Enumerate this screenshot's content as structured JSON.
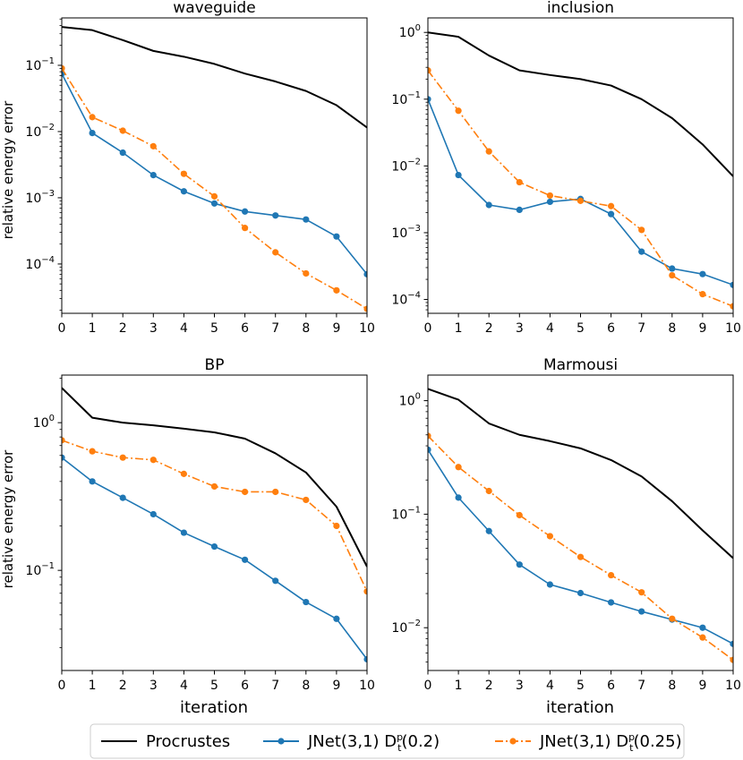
{
  "figure": {
    "x_axis_label": "iteration",
    "y_axis_label": "relative energy error"
  },
  "legend": {
    "placement": "bottom-center",
    "entries": [
      {
        "text": "Procrustes",
        "color": "#000000",
        "marker": false,
        "dash": "solid"
      },
      {
        "text": "JNet(3,1) D",
        "sup": "p",
        "sub": "t",
        "arg": "(0.2)",
        "color": "#1f77b4",
        "marker": true,
        "dash": "solid"
      },
      {
        "text": "JNet(3,1) D",
        "sup": "p",
        "sub": "t",
        "arg": "(0.25)",
        "color": "#ff7f0e",
        "marker": true,
        "dash": "dashdot"
      }
    ]
  },
  "chart_data": [
    {
      "type": "line",
      "title": "waveguide",
      "xlabel": "",
      "ylabel": "relative energy error",
      "yscale": "log",
      "xlim": [
        0,
        10
      ],
      "ylim": [
        1.8e-05,
        0.52
      ],
      "xticks": [
        "0",
        "1",
        "2",
        "3",
        "4",
        "5",
        "6",
        "7",
        "8",
        "9",
        "10"
      ],
      "yticks": [
        {
          "base": "10",
          "exp": "−1",
          "value": 0.1
        },
        {
          "base": "10",
          "exp": "−2",
          "value": 0.01
        },
        {
          "base": "10",
          "exp": "−3",
          "value": 0.001
        },
        {
          "base": "10",
          "exp": "−4",
          "value": 0.0001
        }
      ],
      "x": [
        0,
        1,
        2,
        3,
        4,
        5,
        6,
        7,
        8,
        9,
        10
      ],
      "series": [
        {
          "name": "Procrustes",
          "values": [
            0.38,
            0.34,
            0.24,
            0.165,
            0.135,
            0.105,
            0.075,
            0.057,
            0.041,
            0.025,
            0.0115
          ]
        },
        {
          "name": "JNet(3,1) D_t^p(0.2)",
          "values": [
            0.075,
            0.0095,
            0.0048,
            0.0022,
            0.00125,
            0.00082,
            0.00062,
            0.00054,
            0.00047,
            0.00026,
            7e-05
          ]
        },
        {
          "name": "JNet(3,1) D_t^p(0.25)",
          "values": [
            0.09,
            0.0165,
            0.0103,
            0.006,
            0.0023,
            0.00105,
            0.00035,
            0.00015,
            7.2e-05,
            4e-05,
            2.1e-05
          ]
        }
      ]
    },
    {
      "type": "line",
      "title": "inclusion",
      "xlabel": "",
      "ylabel": "",
      "yscale": "log",
      "xlim": [
        0,
        10
      ],
      "ylim": [
        6.2e-05,
        1.65
      ],
      "xticks": [
        "0",
        "1",
        "2",
        "3",
        "4",
        "5",
        "6",
        "7",
        "8",
        "9",
        "10"
      ],
      "yticks": [
        {
          "base": "10",
          "exp": "0",
          "value": 1
        },
        {
          "base": "10",
          "exp": "−1",
          "value": 0.1
        },
        {
          "base": "10",
          "exp": "−2",
          "value": 0.01
        },
        {
          "base": "10",
          "exp": "−3",
          "value": 0.001
        },
        {
          "base": "10",
          "exp": "−4",
          "value": 0.0001
        }
      ],
      "x": [
        0,
        1,
        2,
        3,
        4,
        5,
        6,
        7,
        8,
        9,
        10
      ],
      "series": [
        {
          "name": "Procrustes",
          "values": [
            1.0,
            0.86,
            0.45,
            0.27,
            0.23,
            0.2,
            0.16,
            0.1,
            0.052,
            0.021,
            0.007
          ]
        },
        {
          "name": "JNet(3,1) D_t^p(0.2)",
          "values": [
            0.1,
            0.0073,
            0.0026,
            0.0022,
            0.0029,
            0.0032,
            0.0019,
            0.00052,
            0.00029,
            0.00024,
            0.000165
          ]
        },
        {
          "name": "JNet(3,1) D_t^p(0.25)",
          "values": [
            0.27,
            0.067,
            0.0165,
            0.0057,
            0.0036,
            0.003,
            0.0025,
            0.0011,
            0.00023,
            0.00012,
            7.9e-05
          ]
        }
      ]
    },
    {
      "type": "line",
      "title": "BP",
      "xlabel": "iteration",
      "ylabel": "relative energy error",
      "yscale": "log",
      "xlim": [
        0,
        10
      ],
      "ylim": [
        0.021,
        2.1
      ],
      "xticks": [
        "0",
        "1",
        "2",
        "3",
        "4",
        "5",
        "6",
        "7",
        "8",
        "9",
        "10"
      ],
      "yticks": [
        {
          "base": "10",
          "exp": "0",
          "value": 1
        },
        {
          "base": "10",
          "exp": "−1",
          "value": 0.1
        }
      ],
      "x": [
        0,
        1,
        2,
        3,
        4,
        5,
        6,
        7,
        8,
        9,
        10
      ],
      "series": [
        {
          "name": "Procrustes",
          "values": [
            1.72,
            1.08,
            1.0,
            0.96,
            0.91,
            0.86,
            0.78,
            0.62,
            0.46,
            0.27,
            0.106
          ]
        },
        {
          "name": "JNet(3,1) D_t^p(0.2)",
          "values": [
            0.58,
            0.4,
            0.31,
            0.24,
            0.18,
            0.145,
            0.118,
            0.085,
            0.061,
            0.047,
            0.025
          ]
        },
        {
          "name": "JNet(3,1) D_t^p(0.25)",
          "values": [
            0.76,
            0.64,
            0.58,
            0.56,
            0.45,
            0.37,
            0.34,
            0.34,
            0.3,
            0.2,
            0.072
          ]
        }
      ]
    },
    {
      "type": "line",
      "title": "Marmousi",
      "xlabel": "iteration",
      "ylabel": "",
      "yscale": "log",
      "xlim": [
        0,
        10
      ],
      "ylim": [
        0.0042,
        1.68
      ],
      "xticks": [
        "0",
        "1",
        "2",
        "3",
        "4",
        "5",
        "6",
        "7",
        "8",
        "9",
        "10"
      ],
      "yticks": [
        {
          "base": "10",
          "exp": "0",
          "value": 1
        },
        {
          "base": "10",
          "exp": "−1",
          "value": 0.1
        },
        {
          "base": "10",
          "exp": "−2",
          "value": 0.01
        }
      ],
      "x": [
        0,
        1,
        2,
        3,
        4,
        5,
        6,
        7,
        8,
        9,
        10
      ],
      "series": [
        {
          "name": "Procrustes",
          "values": [
            1.27,
            1.02,
            0.63,
            0.5,
            0.44,
            0.38,
            0.3,
            0.215,
            0.13,
            0.072,
            0.041
          ]
        },
        {
          "name": "JNet(3,1) D_t^p(0.2)",
          "values": [
            0.37,
            0.14,
            0.071,
            0.036,
            0.024,
            0.0202,
            0.0167,
            0.0139,
            0.0118,
            0.01,
            0.0072
          ]
        },
        {
          "name": "JNet(3,1) D_t^p(0.25)",
          "values": [
            0.49,
            0.26,
            0.16,
            0.098,
            0.064,
            0.042,
            0.029,
            0.0205,
            0.012,
            0.0082,
            0.0052
          ]
        }
      ]
    }
  ]
}
